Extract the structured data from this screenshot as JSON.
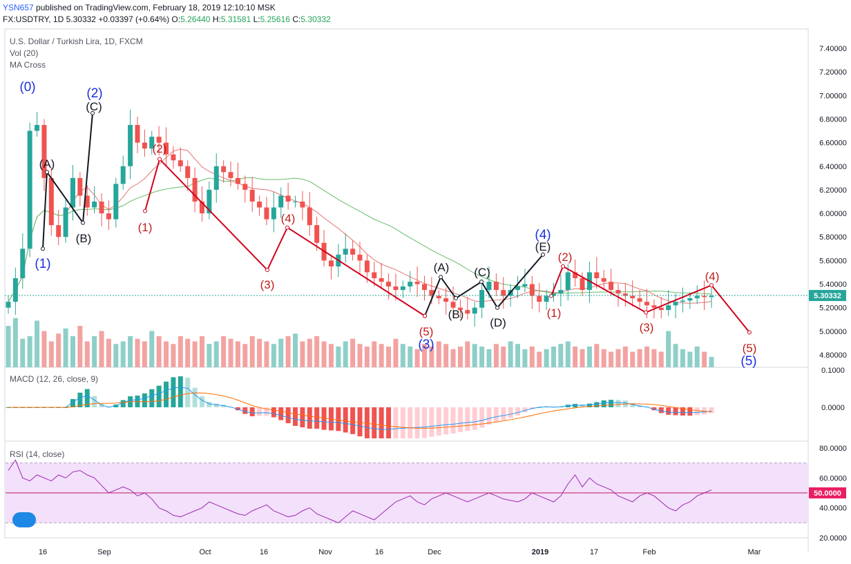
{
  "header": {
    "user": "YSN657",
    "published": "published on TradingView.com, February 18, 2019 12:10:10 MSK",
    "symbol": "FX:USDTRY, 1D",
    "last": "5.30332",
    "change": "+0.03397 (+0.64%)",
    "o_label": "O:",
    "o": "5.26440",
    "h_label": "H:",
    "h": "5.31581",
    "l_label": "L:",
    "l": "5.25616",
    "c_label": "C:",
    "c": "5.30332"
  },
  "panes": {
    "main_title": "U.S. Dollar / Turkish Lira, 1D, FXCM",
    "vol_title": "Vol (20)",
    "ma_title": "MA Cross",
    "macd_title": "MACD (12, 26, close, 9)",
    "rsi_title": "RSI (14, close)"
  },
  "chart_data": {
    "type": "candlestick",
    "x_ticks": [
      "16",
      "Sep",
      "Oct",
      "16",
      "Nov",
      "16",
      "Dec",
      "2019",
      "17",
      "Feb",
      "Mar"
    ],
    "price_axis": {
      "ticks": [
        "7.40000",
        "7.20000",
        "7.00000",
        "6.80000",
        "6.60000",
        "6.40000",
        "6.20000",
        "6.00000",
        "5.80000",
        "5.60000",
        "5.40000",
        "5.20000",
        "5.00000",
        "4.80000"
      ],
      "ylim": [
        4.7,
        7.5
      ],
      "last_price_label": "5.30332",
      "last_price": 5.30332
    },
    "macd_axis": {
      "ticks": [
        "0.1000",
        "0.0000"
      ]
    },
    "rsi_axis": {
      "ticks": [
        "80.0000",
        "60.0000",
        "40.0000",
        "20.0000"
      ],
      "value_label": "50.0000",
      "band": [
        30,
        70
      ]
    },
    "candles_close": [
      5.25,
      5.45,
      5.7,
      6.7,
      6.75,
      6.3,
      5.9,
      5.8,
      6.05,
      6.3,
      6.15,
      6.05,
      6.1,
      6.0,
      5.95,
      6.25,
      6.4,
      6.75,
      6.6,
      6.55,
      6.65,
      6.6,
      6.5,
      6.45,
      6.4,
      6.3,
      6.1,
      6.0,
      6.2,
      6.4,
      6.35,
      6.3,
      6.25,
      6.2,
      6.1,
      6.05,
      5.95,
      6.05,
      6.15,
      6.1,
      6.1,
      6.05,
      5.9,
      5.75,
      5.6,
      5.55,
      5.65,
      5.7,
      5.65,
      5.6,
      5.5,
      5.45,
      5.42,
      5.38,
      5.35,
      5.38,
      5.42,
      5.4,
      5.35,
      5.3,
      5.28,
      5.25,
      5.2,
      5.18,
      5.15,
      5.2,
      5.35,
      5.42,
      5.35,
      5.3,
      5.35,
      5.38,
      5.4,
      5.3,
      5.25,
      5.3,
      5.32,
      5.35,
      5.5,
      5.45,
      5.35,
      5.5,
      5.45,
      5.42,
      5.35,
      5.32,
      5.3,
      5.28,
      5.25,
      5.22,
      5.2,
      5.18,
      5.22,
      5.25,
      5.26,
      5.28,
      5.3,
      5.29,
      5.3
    ],
    "volume": [
      0.8,
      0.95,
      0.55,
      0.6,
      0.9,
      0.7,
      0.5,
      0.65,
      0.75,
      0.6,
      0.8,
      0.5,
      0.6,
      0.7,
      0.55,
      0.45,
      0.5,
      0.6,
      0.55,
      0.5,
      0.7,
      0.6,
      0.5,
      0.45,
      0.6,
      0.55,
      0.5,
      0.6,
      0.45,
      0.5,
      0.6,
      0.55,
      0.5,
      0.45,
      0.6,
      0.55,
      0.5,
      0.45,
      0.55,
      0.6,
      0.65,
      0.5,
      0.55,
      0.6,
      0.5,
      0.45,
      0.4,
      0.5,
      0.55,
      0.45,
      0.4,
      0.5,
      0.45,
      0.4,
      0.55,
      0.45,
      0.4,
      0.35,
      0.45,
      0.4,
      0.5,
      0.45,
      0.35,
      0.4,
      0.5,
      0.45,
      0.4,
      0.35,
      0.45,
      0.4,
      0.5,
      0.45,
      0.35,
      0.4,
      0.3,
      0.35,
      0.4,
      0.45,
      0.5,
      0.4,
      0.35,
      0.4,
      0.45,
      0.35,
      0.3,
      0.35,
      0.4,
      0.3,
      0.35,
      0.4,
      0.35,
      0.3,
      0.7,
      0.45,
      0.35,
      0.3,
      0.4,
      0.3,
      0.2
    ],
    "rsi": [
      65,
      72,
      60,
      58,
      62,
      60,
      58,
      62,
      60,
      64,
      65,
      62,
      60,
      55,
      50,
      52,
      54,
      52,
      48,
      50,
      46,
      40,
      38,
      35,
      34,
      36,
      38,
      40,
      44,
      42,
      40,
      38,
      36,
      35,
      38,
      40,
      42,
      38,
      36,
      34,
      35,
      38,
      40,
      36,
      34,
      32,
      30,
      34,
      38,
      36,
      34,
      32,
      36,
      40,
      44,
      46,
      48,
      44,
      42,
      46,
      48,
      50,
      48,
      46,
      44,
      46,
      48,
      50,
      48,
      46,
      45,
      44,
      46,
      50,
      48,
      46,
      44,
      48,
      56,
      62,
      54,
      60,
      56,
      54,
      52,
      48,
      46,
      44,
      48,
      50,
      48,
      44,
      40,
      38,
      42,
      44,
      48,
      50,
      52
    ],
    "waves": [
      {
        "label": "(0)",
        "color": "blue"
      },
      {
        "label": "(1)",
        "color": "blue"
      },
      {
        "label": "(A)",
        "color": "black"
      },
      {
        "label": "(B)",
        "color": "black"
      },
      {
        "label": "(2)",
        "color": "blue"
      },
      {
        "label": "(C)",
        "color": "black"
      },
      {
        "label": "(1)",
        "color": "red"
      },
      {
        "label": "(2)",
        "color": "red"
      },
      {
        "label": "(3)",
        "color": "red"
      },
      {
        "label": "(4)",
        "color": "red"
      },
      {
        "label": "(5)",
        "color": "red"
      },
      {
        "label": "(3)",
        "color": "blue"
      },
      {
        "label": "(A)",
        "color": "black"
      },
      {
        "label": "(B)",
        "color": "black"
      },
      {
        "label": "(C)",
        "color": "black"
      },
      {
        "label": "(D)",
        "color": "black"
      },
      {
        "label": "(4)",
        "color": "blue"
      },
      {
        "label": "(E)",
        "color": "black"
      },
      {
        "label": "(1)",
        "color": "red"
      },
      {
        "label": "(2)",
        "color": "red"
      },
      {
        "label": "(3)",
        "color": "red"
      },
      {
        "label": "(4)",
        "color": "red"
      },
      {
        "label": "(5)",
        "color": "red"
      },
      {
        "label": "(5)",
        "color": "blue"
      }
    ]
  },
  "colors": {
    "up": "#26a69a",
    "down": "#ef5350",
    "up_vol": "#8ecfc8",
    "down_vol": "#f2a3a1",
    "wave_red": "#d0021b",
    "wave_black": "#131722",
    "rsi_fill": "#f3e0fb",
    "rsi_line": "#9c27b0"
  }
}
